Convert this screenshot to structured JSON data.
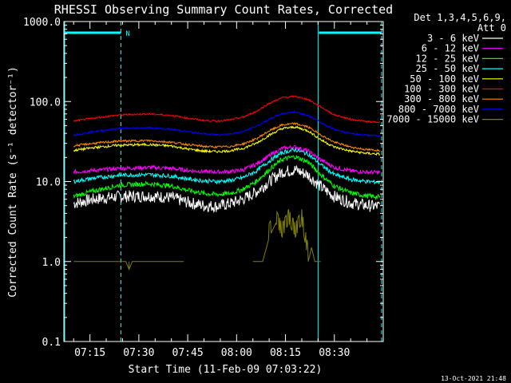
{
  "chart_data": {
    "type": "line",
    "title": "RHESSI Observing Summary Count Rates, Corrected",
    "xlabel": "Start Time (11-Feb-09 07:03:22)",
    "ylabel": "Corrected Count Rate (s⁻¹ detector⁻¹)",
    "yscale": "log",
    "ylim": [
      0.1,
      1000
    ],
    "xlim_minutes": [
      7.0,
      105.0
    ],
    "y_tick_labels": [
      "0.1",
      "1.0",
      "10.0",
      "100.0",
      "1000.0"
    ],
    "x_tick_labels": [
      "07:15",
      "07:30",
      "07:45",
      "08:00",
      "08:15",
      "08:30"
    ],
    "legend_header": [
      "Det 1,3,4,5,6,9,",
      "Att 0"
    ],
    "legend_position": "right",
    "footer_timestamp": "13-Oct-2021 21:48",
    "night_marker": "N",
    "day_night": {
      "night_intervals": [
        [
          7.0,
          24.5
        ],
        [
          85.0,
          104.5
        ]
      ],
      "boundaries": [
        24.5,
        85.0,
        104.5
      ]
    },
    "series": [
      {
        "name": "3 - 6 keV",
        "color": "#ffffff",
        "x": [
          10,
          16,
          24,
          33,
          40,
          45,
          50,
          54,
          58,
          62,
          66,
          70,
          74,
          78,
          82,
          86,
          90,
          95,
          100,
          104
        ],
        "y": [
          5.3,
          6.0,
          6.5,
          6.6,
          6.3,
          5.5,
          5.0,
          4.9,
          5.3,
          6.0,
          7.4,
          10.0,
          13.2,
          14.0,
          12.0,
          8.5,
          6.5,
          5.4,
          5.0,
          4.9
        ]
      },
      {
        "name": "6 - 12 keV",
        "color": "#ff00ff",
        "x": [
          10,
          16,
          24,
          33,
          40,
          45,
          50,
          54,
          58,
          62,
          66,
          70,
          74,
          78,
          82,
          86,
          90,
          95,
          100,
          104
        ],
        "y": [
          13.2,
          13.8,
          14.6,
          15.0,
          14.6,
          13.8,
          13.3,
          13.2,
          13.3,
          14.0,
          16.5,
          21.0,
          26.0,
          27.0,
          24.0,
          18.5,
          15.0,
          13.6,
          13.1,
          13.0
        ]
      },
      {
        "name": "12 - 25 keV",
        "color": "#00ff00",
        "x": [
          10,
          16,
          24,
          33,
          40,
          45,
          50,
          54,
          58,
          62,
          66,
          70,
          74,
          78,
          82,
          86,
          90,
          95,
          100,
          104
        ],
        "y": [
          6.5,
          7.6,
          9.0,
          9.4,
          8.8,
          7.8,
          7.1,
          6.9,
          7.1,
          8.0,
          10.0,
          14.0,
          19.0,
          20.5,
          17.5,
          12.0,
          8.8,
          7.2,
          6.6,
          6.4
        ]
      },
      {
        "name": "25 - 50 keV",
        "color": "#00ffff",
        "x": [
          10,
          16,
          24,
          33,
          40,
          45,
          50,
          54,
          58,
          62,
          66,
          70,
          74,
          78,
          82,
          86,
          90,
          95,
          100,
          104
        ],
        "y": [
          10.0,
          11.0,
          12.0,
          12.2,
          11.7,
          10.8,
          10.2,
          10.0,
          10.3,
          11.2,
          13.5,
          18.0,
          23.0,
          25.0,
          22.0,
          16.0,
          12.2,
          10.6,
          10.0,
          9.8
        ]
      },
      {
        "name": "50 - 100 keV",
        "color": "#ffff00",
        "x": [
          10,
          16,
          24,
          33,
          40,
          45,
          50,
          54,
          58,
          62,
          66,
          70,
          74,
          78,
          82,
          86,
          90,
          95,
          100,
          104
        ],
        "y": [
          24.5,
          26.5,
          28.5,
          29.0,
          27.8,
          25.5,
          24.0,
          23.7,
          24.2,
          26.0,
          30.0,
          38.0,
          46.0,
          48.0,
          43.0,
          33.0,
          27.0,
          24.0,
          22.5,
          22.0
        ]
      },
      {
        "name": "100 - 300 keV",
        "color": "#ff0000",
        "x": [
          10,
          16,
          24,
          33,
          40,
          45,
          50,
          54,
          58,
          62,
          66,
          70,
          74,
          78,
          82,
          86,
          90,
          95,
          100,
          104
        ],
        "y": [
          57,
          62,
          68,
          70,
          67,
          62,
          58,
          57,
          59,
          64,
          75,
          95,
          112,
          116,
          106,
          85,
          68,
          60,
          56,
          55
        ]
      },
      {
        "name": "300 - 800 keV",
        "color": "#ff8800",
        "x": [
          10,
          16,
          24,
          33,
          40,
          45,
          50,
          54,
          58,
          62,
          66,
          70,
          74,
          78,
          82,
          86,
          90,
          95,
          100,
          104
        ],
        "y": [
          28,
          30,
          32,
          32.5,
          31,
          29,
          27.5,
          27,
          27.5,
          29.5,
          34,
          43,
          51,
          53,
          48,
          38,
          31,
          27,
          25,
          24.5
        ]
      },
      {
        "name": "800 - 7000 keV",
        "color": "#0000ff",
        "x": [
          10,
          16,
          24,
          33,
          40,
          45,
          50,
          54,
          58,
          62,
          66,
          70,
          74,
          78,
          82,
          86,
          90,
          95,
          100,
          104
        ],
        "y": [
          38,
          42,
          46,
          47,
          45,
          42,
          39.5,
          38.5,
          39.5,
          42,
          49,
          60,
          71,
          74,
          67,
          54,
          45,
          40,
          38,
          37
        ]
      },
      {
        "name": "7000 - 15000 keV",
        "color": "#808000",
        "x": [
          10,
          18,
          24,
          26,
          27,
          28,
          36,
          44,
          65,
          68,
          70,
          72,
          74,
          76,
          78,
          80,
          82,
          83,
          84,
          86
        ],
        "y": [
          1.0,
          1.0,
          1.0,
          1.0,
          0.8,
          1.0,
          1.0,
          1.0,
          1.0,
          1.0,
          2.0,
          3.0,
          2.0,
          3.0,
          2.0,
          3.0,
          1.0,
          1.5,
          1.0,
          1.0
        ]
      }
    ]
  }
}
